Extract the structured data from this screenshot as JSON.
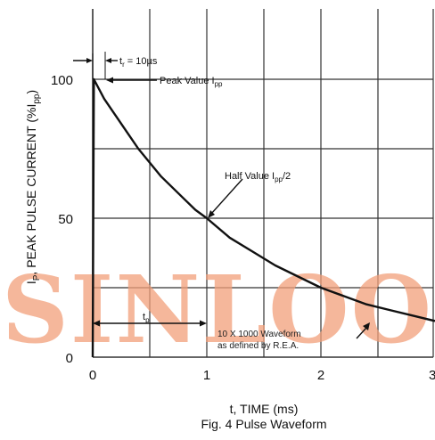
{
  "watermark": "SINLOO",
  "chart_data": {
    "type": "line",
    "title": "Fig. 4  Pulse Waveform",
    "xlabel": "t, TIME (ms)",
    "ylabel_main": "I",
    "ylabel_main_sub": "P",
    "ylabel_text": ", PEAK PULSE CURRENT (%I",
    "ylabel_sub": "pp",
    "ylabel_close": ")",
    "xlim": [
      0,
      3
    ],
    "ylim": [
      0,
      100
    ],
    "x_ticks": [
      "0",
      "1",
      "2",
      "3"
    ],
    "y_ticks": [
      "0",
      "50",
      "100"
    ],
    "grid": true,
    "series": [
      {
        "x": [
          0,
          0.01,
          0.1,
          0.2,
          0.3,
          0.4,
          0.5,
          0.6,
          0.7,
          0.8,
          0.9,
          1.0,
          1.2,
          1.4,
          1.6,
          1.8,
          2.0,
          2.2,
          2.4,
          2.6,
          2.8,
          3.0
        ],
        "y": [
          0,
          100,
          93,
          87,
          81,
          75,
          70,
          65,
          61,
          57,
          53,
          50,
          43,
          38,
          33,
          29,
          25,
          22,
          19,
          17,
          15,
          13
        ]
      }
    ],
    "annotations": {
      "tr_label": "t",
      "tr_sub": "r",
      "tr_value": " = 10µs",
      "peak_label": "Peak Value I",
      "peak_sub": "pp",
      "half_label": "Half Value I",
      "half_sub": "pp",
      "half_suffix": "/2",
      "tp_label": "t",
      "tp_sub": "p",
      "waveform_line1": "10 X 1000 Waveform",
      "waveform_line2": "as defined by R.E.A."
    }
  }
}
